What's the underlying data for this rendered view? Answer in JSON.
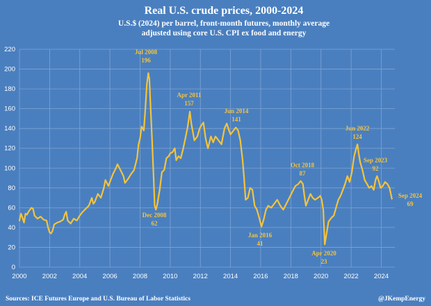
{
  "chart_data": {
    "type": "line",
    "title": "Real U.S. crude prices, 2000-2024",
    "subtitle_line1": "U.S.$ (2024) per barrel, front-month futures, monthly average",
    "subtitle_line2": "adjusted using core U.S. CPI ex food and energy",
    "xlabel": "",
    "ylabel": "",
    "xlim": [
      2000,
      2024.9
    ],
    "ylim": [
      0,
      220
    ],
    "grid": true,
    "y_ticks": [
      0,
      20,
      40,
      60,
      80,
      100,
      120,
      140,
      160,
      180,
      200,
      220
    ],
    "x_ticks": [
      2000,
      2002,
      2004,
      2006,
      2008,
      2010,
      2012,
      2014,
      2016,
      2018,
      2020,
      2022,
      2024
    ],
    "line_color": "#f5c43a",
    "series": [
      {
        "points": [
          [
            2000.0,
            47
          ],
          [
            2000.1,
            54
          ],
          [
            2000.2,
            50
          ],
          [
            2000.3,
            45
          ],
          [
            2000.4,
            54
          ],
          [
            2000.5,
            53
          ],
          [
            2000.6,
            56
          ],
          [
            2000.7,
            58
          ],
          [
            2000.8,
            60
          ],
          [
            2000.9,
            59
          ],
          [
            2001.0,
            52
          ],
          [
            2001.2,
            49
          ],
          [
            2001.4,
            51
          ],
          [
            2001.6,
            48
          ],
          [
            2001.8,
            47
          ],
          [
            2001.9,
            40
          ],
          [
            2002.0,
            35
          ],
          [
            2002.1,
            34
          ],
          [
            2002.2,
            37
          ],
          [
            2002.3,
            43
          ],
          [
            2002.5,
            45
          ],
          [
            2002.7,
            46
          ],
          [
            2002.9,
            48
          ],
          [
            2003.0,
            53
          ],
          [
            2003.1,
            56
          ],
          [
            2003.2,
            47
          ],
          [
            2003.4,
            44
          ],
          [
            2003.6,
            49
          ],
          [
            2003.8,
            47
          ],
          [
            2004.0,
            52
          ],
          [
            2004.2,
            56
          ],
          [
            2004.4,
            59
          ],
          [
            2004.6,
            62
          ],
          [
            2004.8,
            70
          ],
          [
            2004.9,
            64
          ],
          [
            2005.0,
            66
          ],
          [
            2005.2,
            74
          ],
          [
            2005.4,
            70
          ],
          [
            2005.6,
            80
          ],
          [
            2005.7,
            88
          ],
          [
            2005.9,
            82
          ],
          [
            2006.0,
            86
          ],
          [
            2006.2,
            94
          ],
          [
            2006.4,
            100
          ],
          [
            2006.5,
            104
          ],
          [
            2006.7,
            98
          ],
          [
            2006.9,
            92
          ],
          [
            2007.0,
            85
          ],
          [
            2007.2,
            89
          ],
          [
            2007.4,
            94
          ],
          [
            2007.6,
            98
          ],
          [
            2007.8,
            110
          ],
          [
            2007.9,
            124
          ],
          [
            2008.0,
            130
          ],
          [
            2008.1,
            142
          ],
          [
            2008.25,
            138
          ],
          [
            2008.35,
            160
          ],
          [
            2008.45,
            185
          ],
          [
            2008.55,
            196
          ],
          [
            2008.62,
            190
          ],
          [
            2008.7,
            160
          ],
          [
            2008.8,
            128
          ],
          [
            2008.9,
            90
          ],
          [
            2008.97,
            62
          ],
          [
            2009.05,
            58
          ],
          [
            2009.15,
            64
          ],
          [
            2009.3,
            78
          ],
          [
            2009.45,
            96
          ],
          [
            2009.6,
            98
          ],
          [
            2009.75,
            110
          ],
          [
            2009.9,
            112
          ],
          [
            2010.0,
            115
          ],
          [
            2010.15,
            116
          ],
          [
            2010.3,
            120
          ],
          [
            2010.4,
            108
          ],
          [
            2010.55,
            112
          ],
          [
            2010.7,
            110
          ],
          [
            2010.85,
            119
          ],
          [
            2011.0,
            130
          ],
          [
            2011.15,
            141
          ],
          [
            2011.3,
            157
          ],
          [
            2011.4,
            145
          ],
          [
            2011.6,
            128
          ],
          [
            2011.8,
            132
          ],
          [
            2011.95,
            140
          ],
          [
            2012.1,
            144
          ],
          [
            2012.2,
            146
          ],
          [
            2012.35,
            130
          ],
          [
            2012.5,
            120
          ],
          [
            2012.7,
            132
          ],
          [
            2012.85,
            126
          ],
          [
            2013.0,
            132
          ],
          [
            2013.2,
            128
          ],
          [
            2013.4,
            124
          ],
          [
            2013.6,
            140
          ],
          [
            2013.75,
            145
          ],
          [
            2013.9,
            138
          ],
          [
            2014.0,
            134
          ],
          [
            2014.2,
            138
          ],
          [
            2014.35,
            141
          ],
          [
            2014.5,
            138
          ],
          [
            2014.65,
            128
          ],
          [
            2014.8,
            108
          ],
          [
            2014.9,
            90
          ],
          [
            2015.0,
            68
          ],
          [
            2015.15,
            70
          ],
          [
            2015.3,
            80
          ],
          [
            2015.45,
            78
          ],
          [
            2015.6,
            62
          ],
          [
            2015.75,
            58
          ],
          [
            2015.9,
            50
          ],
          [
            2016.05,
            41
          ],
          [
            2016.2,
            48
          ],
          [
            2016.35,
            58
          ],
          [
            2016.5,
            62
          ],
          [
            2016.7,
            60
          ],
          [
            2016.9,
            64
          ],
          [
            2017.1,
            68
          ],
          [
            2017.3,
            62
          ],
          [
            2017.5,
            58
          ],
          [
            2017.7,
            64
          ],
          [
            2017.9,
            70
          ],
          [
            2018.1,
            76
          ],
          [
            2018.3,
            82
          ],
          [
            2018.5,
            84
          ],
          [
            2018.65,
            87
          ],
          [
            2018.8,
            84
          ],
          [
            2018.9,
            72
          ],
          [
            2019.0,
            62
          ],
          [
            2019.15,
            68
          ],
          [
            2019.3,
            74
          ],
          [
            2019.45,
            70
          ],
          [
            2019.6,
            68
          ],
          [
            2019.8,
            70
          ],
          [
            2019.95,
            72
          ],
          [
            2020.05,
            68
          ],
          [
            2020.15,
            58
          ],
          [
            2020.25,
            23
          ],
          [
            2020.35,
            32
          ],
          [
            2020.5,
            46
          ],
          [
            2020.7,
            50
          ],
          [
            2020.85,
            52
          ],
          [
            2021.0,
            60
          ],
          [
            2021.15,
            68
          ],
          [
            2021.3,
            72
          ],
          [
            2021.45,
            78
          ],
          [
            2021.6,
            84
          ],
          [
            2021.75,
            92
          ],
          [
            2021.9,
            86
          ],
          [
            2022.05,
            96
          ],
          [
            2022.2,
            112
          ],
          [
            2022.3,
            118
          ],
          [
            2022.42,
            124
          ],
          [
            2022.5,
            115
          ],
          [
            2022.6,
            106
          ],
          [
            2022.75,
            98
          ],
          [
            2022.9,
            88
          ],
          [
            2023.05,
            84
          ],
          [
            2023.2,
            80
          ],
          [
            2023.35,
            82
          ],
          [
            2023.5,
            78
          ],
          [
            2023.62,
            88
          ],
          [
            2023.72,
            92
          ],
          [
            2023.85,
            86
          ],
          [
            2023.95,
            80
          ],
          [
            2024.1,
            82
          ],
          [
            2024.25,
            86
          ],
          [
            2024.4,
            84
          ],
          [
            2024.55,
            80
          ],
          [
            2024.7,
            69
          ]
        ]
      }
    ],
    "annotations": [
      {
        "label": "Jul 2008",
        "value": "196"
      },
      {
        "label": "Dec 2008",
        "value": "62"
      },
      {
        "label": "Apr 2011",
        "value": "157"
      },
      {
        "label": "Jun 2014",
        "value": "141"
      },
      {
        "label": "Jan 2016",
        "value": "41"
      },
      {
        "label": "Oct 2018",
        "value": "87"
      },
      {
        "label": "Apr 2020",
        "value": "23"
      },
      {
        "label": "Jun 2022",
        "value": "124"
      },
      {
        "label": "Sep 2023",
        "value": "92"
      },
      {
        "label": "Sep 2024",
        "value": "69"
      }
    ]
  },
  "footer": {
    "source": "Sources: ICE Futures Europe and U.S. Bureau of Labor Statistics",
    "credit": "@JKempEnergy"
  }
}
